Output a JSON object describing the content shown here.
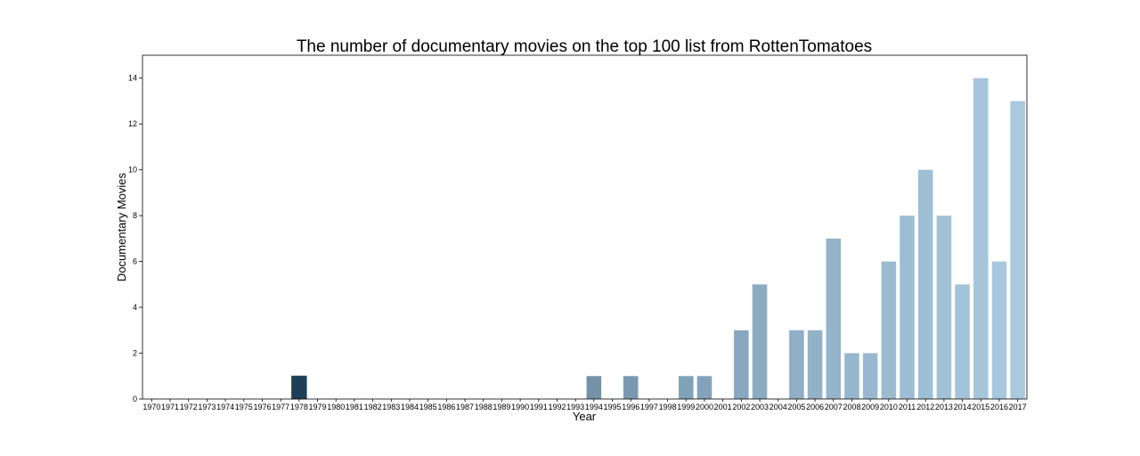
{
  "chart_data": {
    "type": "bar",
    "title": "The number of documentary movies on the top 100 list from RottenTomatoes",
    "xlabel": "Year",
    "ylabel": "Documentary Movies",
    "ylim": [
      0,
      15
    ],
    "yticks": [
      0,
      2,
      4,
      6,
      8,
      10,
      12,
      14
    ],
    "grid": false,
    "legend": "none",
    "categories": [
      "1970",
      "1971",
      "1972",
      "1973",
      "1974",
      "1975",
      "1976",
      "1977",
      "1978",
      "1979",
      "1980",
      "1981",
      "1982",
      "1983",
      "1984",
      "1985",
      "1986",
      "1987",
      "1988",
      "1989",
      "1990",
      "1991",
      "1992",
      "1993",
      "1994",
      "1995",
      "1996",
      "1997",
      "1998",
      "1999",
      "2000",
      "2001",
      "2002",
      "2003",
      "2004",
      "2005",
      "2006",
      "2007",
      "2008",
      "2009",
      "2010",
      "2011",
      "2012",
      "2013",
      "2014",
      "2015",
      "2016",
      "2017"
    ],
    "values": [
      0,
      0,
      0,
      0,
      0,
      0,
      0,
      0,
      1,
      0,
      0,
      0,
      0,
      0,
      0,
      0,
      0,
      0,
      0,
      0,
      0,
      0,
      0,
      0,
      1,
      0,
      1,
      0,
      0,
      1,
      1,
      0,
      3,
      5,
      0,
      3,
      3,
      7,
      2,
      2,
      6,
      8,
      10,
      8,
      5,
      14,
      6,
      13
    ],
    "color_dark": "#1f3d57",
    "color_light": "#a9c9df",
    "edge_color": "#2b4a63"
  }
}
